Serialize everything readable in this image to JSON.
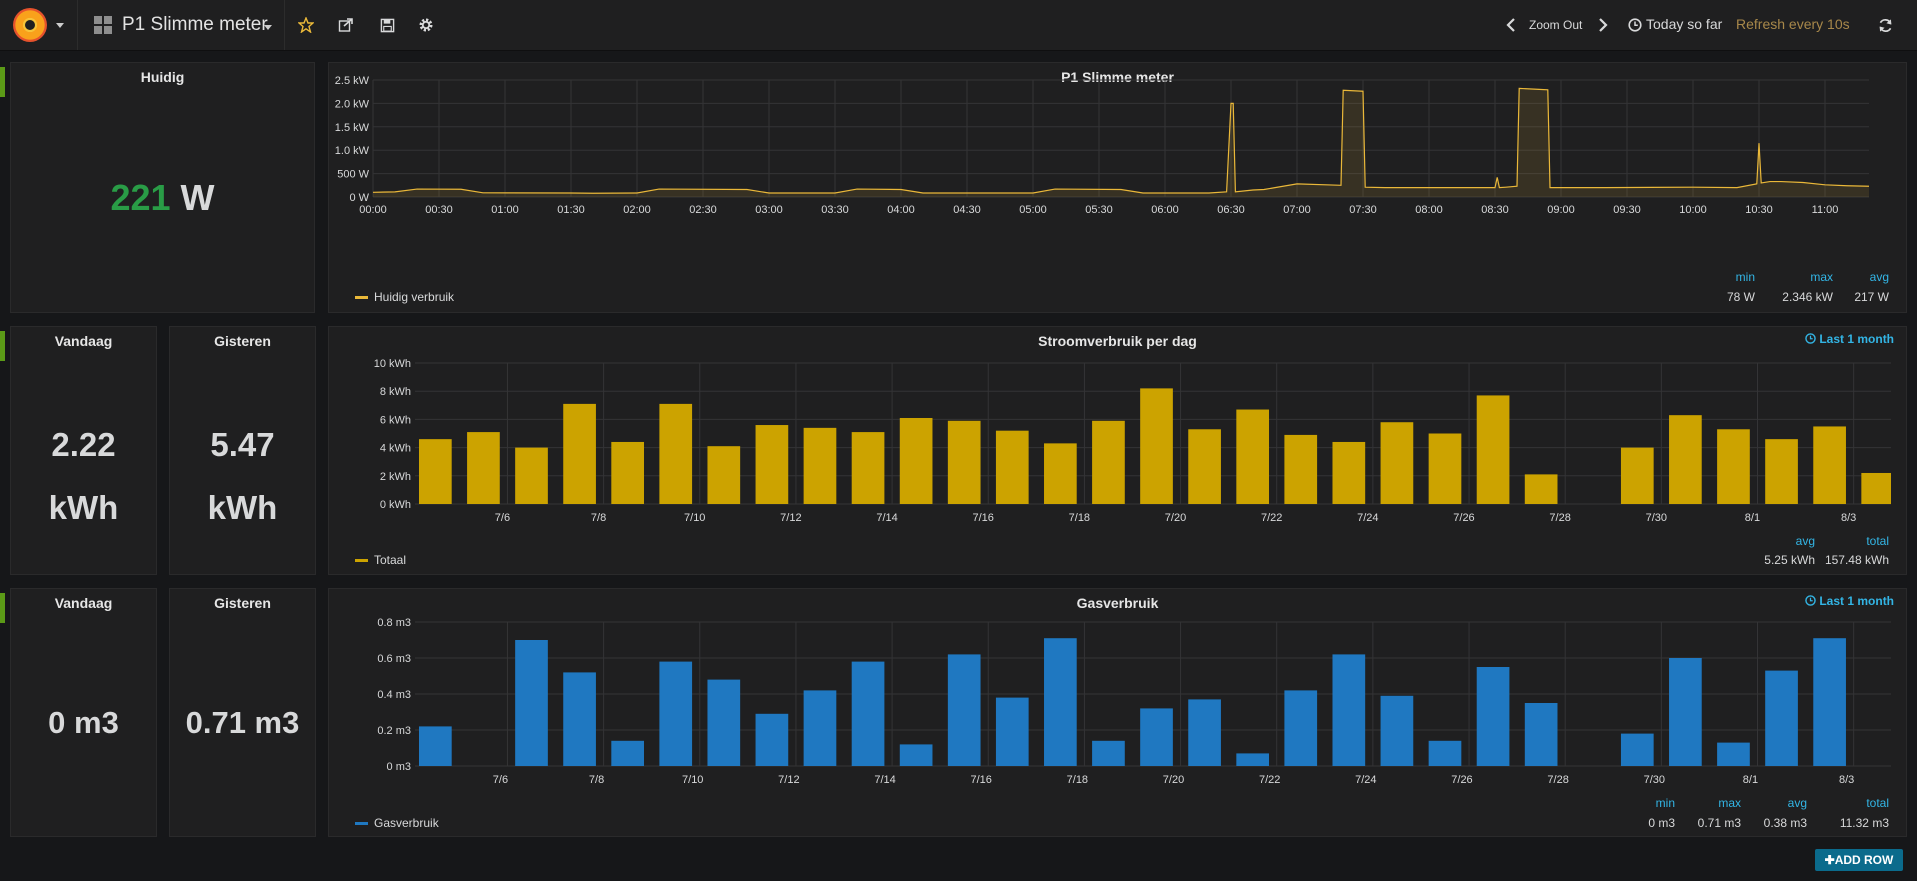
{
  "topbar": {
    "dashboard_title": "P1 Slimme meter",
    "zoom_out": "Zoom Out",
    "time_range": "Today so far",
    "refresh": "Refresh every 10s",
    "icons": [
      "grafana-logo-icon",
      "dashboard-grid-icon",
      "star-icon",
      "share-icon",
      "save-icon",
      "gear-icon",
      "chevron-left-icon",
      "chevron-right-icon",
      "clock-icon",
      "refresh-icon"
    ]
  },
  "current": {
    "title": "Huidig",
    "value": "221",
    "unit": " W"
  },
  "power_today": {
    "title": "Vandaag",
    "value": "2.22",
    "unit": "kWh"
  },
  "power_yesterday": {
    "title": "Gisteren",
    "value": "5.47",
    "unit": "kWh"
  },
  "gas_today": {
    "title": "Vandaag",
    "value": "0 m3"
  },
  "gas_yesterday": {
    "title": "Gisteren",
    "value": "0.71 m3"
  },
  "realtime": {
    "title": "P1 Slimme meter",
    "legend": {
      "series": "Huidig verbruik",
      "headers": {
        "min": "min",
        "max": "max",
        "avg": "avg"
      },
      "values": {
        "min": "78 W",
        "max": "2.346 kW",
        "avg": "217 W"
      }
    }
  },
  "power_daily": {
    "title": "Stroomverbruik per dag",
    "timerange": "Last 1 month",
    "legend": {
      "series": "Totaal",
      "headers": {
        "avg": "avg",
        "total": "total"
      },
      "values": {
        "avg": "5.25 kWh",
        "total": "157.48 kWh"
      }
    }
  },
  "gas_daily": {
    "title": "Gasverbruik",
    "timerange": "Last 1 month",
    "legend": {
      "series": "Gasverbruik",
      "headers": {
        "min": "min",
        "max": "max",
        "avg": "avg",
        "total": "total"
      },
      "values": {
        "min": "0 m3",
        "max": "0.71 m3",
        "avg": "0.38 m3",
        "total": "11.32 m3"
      }
    }
  },
  "add_row": "ADD ROW",
  "colors": {
    "accent_orange": "#eab839",
    "bar_yellow": "#cca300",
    "bar_blue": "#1f78c1",
    "green": "#299c46",
    "blue_text": "#33b5e5",
    "row_marker": "#5b9a17"
  },
  "chart_data": [
    {
      "type": "line",
      "title": "P1 Slimme meter",
      "series": [
        {
          "name": "Huidig verbruik",
          "x": [
            "00:00",
            "00:10",
            "00:20",
            "00:40",
            "00:50",
            "01:30",
            "01:40",
            "02:00",
            "02:10",
            "02:50",
            "03:00",
            "03:30",
            "03:40",
            "04:00",
            "04:10",
            "05:00",
            "05:10",
            "05:40",
            "05:50",
            "06:20",
            "06:28",
            "06:30",
            "06:31",
            "06:32",
            "06:40",
            "06:45",
            "06:50",
            "07:00",
            "07:20",
            "07:21",
            "07:30",
            "07:31",
            "07:40",
            "08:30",
            "08:31",
            "08:32",
            "08:35",
            "08:40",
            "08:41",
            "08:50",
            "08:54",
            "08:55",
            "09:00",
            "09:10",
            "09:20",
            "10:00",
            "10:20",
            "10:29",
            "10:30",
            "10:31",
            "10:35",
            "10:40",
            "10:50",
            "11:00",
            "11:10",
            "11:20"
          ],
          "values": [
            100,
            110,
            170,
            165,
            90,
            85,
            80,
            85,
            170,
            160,
            85,
            85,
            170,
            160,
            85,
            85,
            170,
            160,
            85,
            85,
            110,
            2000,
            2000,
            110,
            150,
            160,
            200,
            280,
            250,
            2280,
            2260,
            210,
            200,
            200,
            420,
            200,
            210,
            230,
            2320,
            2300,
            2290,
            200,
            200,
            200,
            200,
            210,
            200,
            280,
            1150,
            300,
            330,
            330,
            310,
            260,
            240,
            230
          ]
        }
      ],
      "x_ticks": [
        "00:00",
        "00:30",
        "01:00",
        "01:30",
        "02:00",
        "02:30",
        "03:00",
        "03:30",
        "04:00",
        "04:30",
        "05:00",
        "05:30",
        "06:00",
        "06:30",
        "07:00",
        "07:30",
        "08:00",
        "08:30",
        "09:00",
        "09:30",
        "10:00",
        "10:30",
        "11:00"
      ],
      "y_ticks": [
        "0 W",
        "500 W",
        "1.0 kW",
        "1.5 kW",
        "2.0 kW",
        "2.5 kW"
      ],
      "y_unit": "W",
      "ylim": [
        0,
        2500
      ],
      "grid": true,
      "legend": "bottom-left"
    },
    {
      "type": "bar",
      "title": "Stroomverbruik per dag",
      "categories": [
        "7/5",
        "7/6",
        "7/7",
        "7/8",
        "7/9",
        "7/10",
        "7/11",
        "7/12",
        "7/13",
        "7/14",
        "7/15",
        "7/16",
        "7/17",
        "7/18",
        "7/19",
        "7/20",
        "7/21",
        "7/22",
        "7/23",
        "7/24",
        "7/25",
        "7/26",
        "7/27",
        "7/28",
        "7/29",
        "7/30",
        "7/31",
        "8/1",
        "8/2",
        "8/3",
        "8/4"
      ],
      "series": [
        {
          "name": "Totaal",
          "values": [
            4.6,
            5.1,
            4.0,
            7.1,
            4.4,
            7.1,
            4.1,
            5.6,
            5.4,
            5.1,
            6.1,
            5.9,
            5.2,
            4.3,
            5.9,
            8.2,
            5.3,
            6.7,
            4.9,
            4.4,
            5.8,
            5.0,
            7.7,
            2.1,
            0,
            4.0,
            6.3,
            5.3,
            4.6,
            5.5,
            2.2
          ]
        }
      ],
      "x_ticks": [
        "7/6",
        "7/8",
        "7/10",
        "7/12",
        "7/14",
        "7/16",
        "7/18",
        "7/20",
        "7/22",
        "7/24",
        "7/26",
        "7/28",
        "7/30",
        "8/1",
        "8/3"
      ],
      "y_ticks": [
        "0 kWh",
        "2 kWh",
        "4 kWh",
        "6 kWh",
        "8 kWh",
        "10 kWh"
      ],
      "ylim": [
        0,
        10
      ],
      "grid": true,
      "legend": "bottom-left"
    },
    {
      "type": "bar",
      "title": "Gasverbruik",
      "categories": [
        "7/5",
        "7/6",
        "7/7",
        "7/8",
        "7/9",
        "7/10",
        "7/11",
        "7/12",
        "7/13",
        "7/14",
        "7/15",
        "7/16",
        "7/17",
        "7/18",
        "7/19",
        "7/20",
        "7/21",
        "7/22",
        "7/23",
        "7/24",
        "7/25",
        "7/26",
        "7/27",
        "7/28",
        "7/29",
        "7/30",
        "7/31",
        "8/1",
        "8/2",
        "8/3",
        "8/4"
      ],
      "series": [
        {
          "name": "Gasverbruik",
          "values": [
            0.22,
            0,
            0.7,
            0.52,
            0.14,
            0.58,
            0.48,
            0.29,
            0.42,
            0.58,
            0.12,
            0.62,
            0.38,
            0.71,
            0.14,
            0.32,
            0.37,
            0.07,
            0.42,
            0.62,
            0.39,
            0.14,
            0.55,
            0.35,
            0,
            0.18,
            0.6,
            0.13,
            0.53,
            0.71,
            0
          ]
        }
      ],
      "x_ticks": [
        "7/6",
        "7/8",
        "7/10",
        "7/12",
        "7/14",
        "7/16",
        "7/18",
        "7/20",
        "7/22",
        "7/24",
        "7/26",
        "7/28",
        "7/30",
        "8/1",
        "8/3"
      ],
      "y_ticks": [
        "0 m3",
        "0.2 m3",
        "0.4 m3",
        "0.6 m3",
        "0.8 m3"
      ],
      "ylim": [
        0,
        0.8
      ],
      "grid": true,
      "legend": "bottom-left"
    }
  ]
}
